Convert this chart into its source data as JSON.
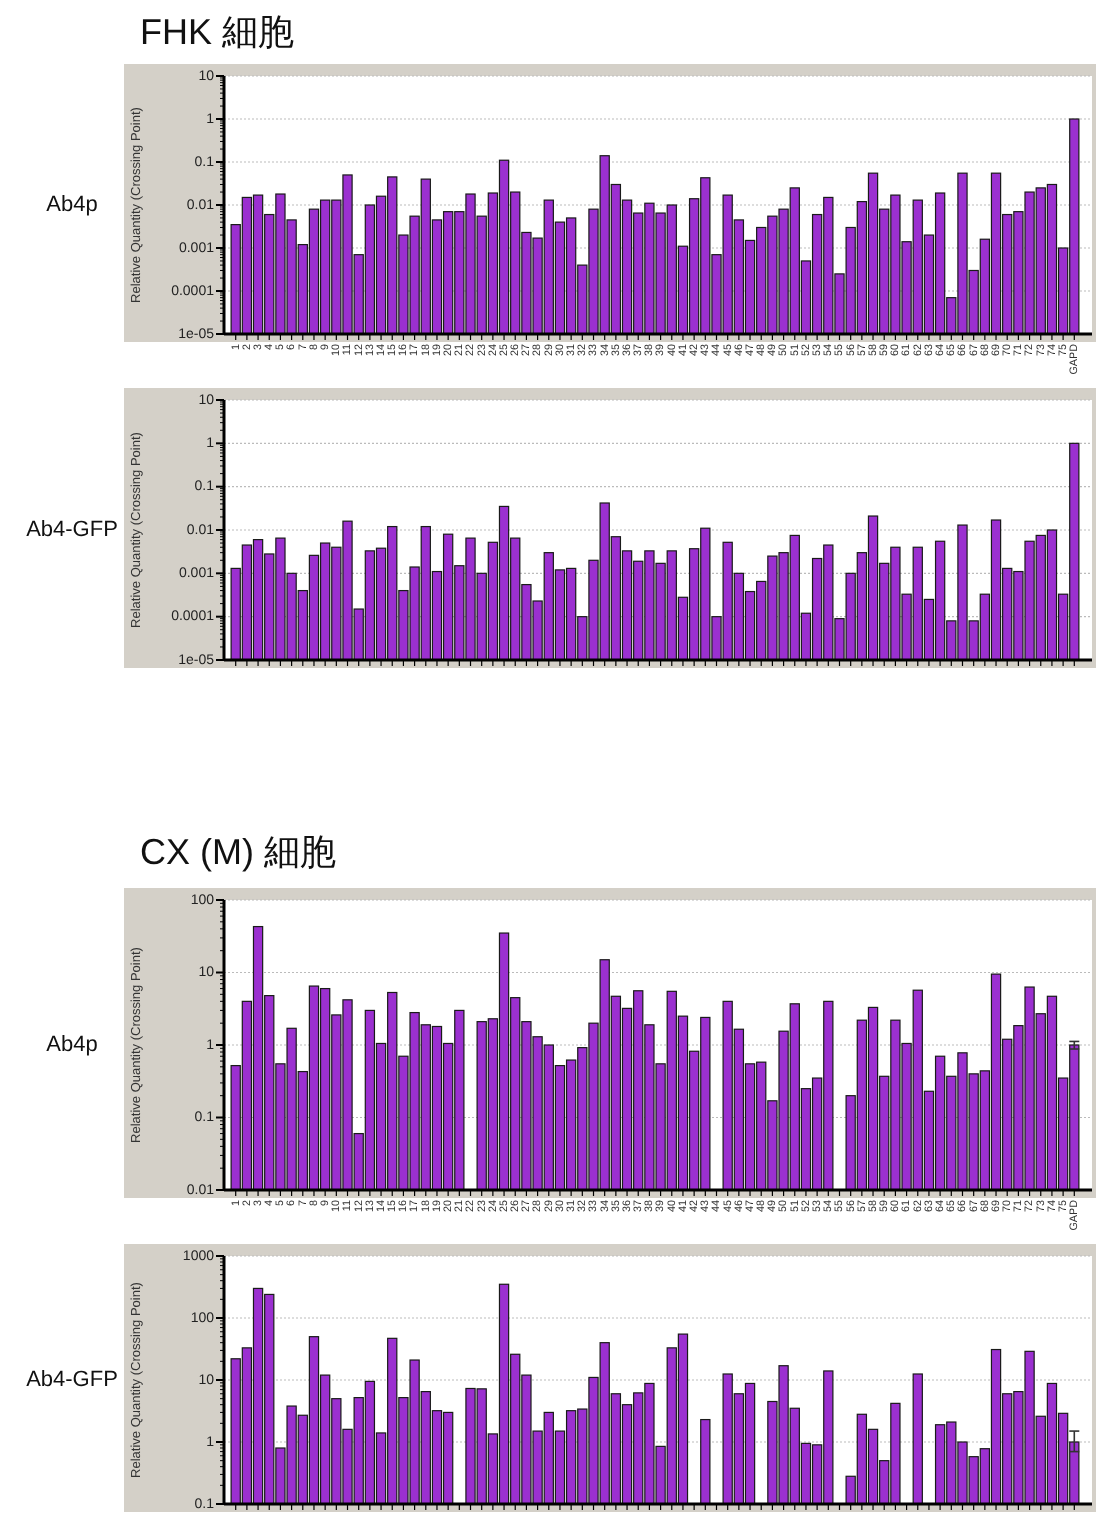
{
  "chart_data": [
    {
      "type": "bar",
      "title": "FHK 細胞",
      "subtitle": "Ab4p",
      "ylabel": "Relative Quantity (Crossing Point)",
      "log": true,
      "grid": "y",
      "color": "#9b30d0",
      "categories": [
        "1",
        "2",
        "3",
        "4",
        "5",
        "6",
        "7",
        "8",
        "9",
        "10",
        "11",
        "12",
        "13",
        "14",
        "15",
        "16",
        "17",
        "18",
        "19",
        "20",
        "21",
        "22",
        "23",
        "24",
        "25",
        "26",
        "27",
        "28",
        "29",
        "30",
        "31",
        "32",
        "33",
        "34",
        "35",
        "36",
        "37",
        "38",
        "39",
        "40",
        "41",
        "42",
        "43",
        "44",
        "45",
        "46",
        "47",
        "48",
        "49",
        "50",
        "51",
        "52",
        "53",
        "54",
        "55",
        "56",
        "57",
        "58",
        "59",
        "60",
        "61",
        "62",
        "63",
        "64",
        "65",
        "66",
        "67",
        "68",
        "69",
        "70",
        "71",
        "72",
        "73",
        "74",
        "75",
        "GAPD"
      ],
      "values": [
        0.0035,
        0.015,
        0.017,
        0.006,
        0.018,
        0.0045,
        0.0012,
        0.008,
        0.013,
        0.013,
        0.05,
        0.0007,
        0.01,
        0.016,
        0.045,
        0.002,
        0.0055,
        0.04,
        0.0045,
        0.007,
        0.007,
        0.018,
        0.0055,
        0.019,
        0.11,
        0.02,
        0.0023,
        0.0017,
        0.013,
        0.004,
        0.005,
        0.0004,
        0.008,
        0.14,
        0.03,
        0.013,
        0.0065,
        0.011,
        0.0065,
        0.01,
        0.0011,
        0.014,
        0.043,
        0.0007,
        0.017,
        0.0045,
        0.0015,
        0.003,
        0.0055,
        0.008,
        0.025,
        0.0005,
        0.006,
        0.015,
        0.00025,
        0.003,
        0.012,
        0.055,
        0.008,
        0.017,
        0.0014,
        0.013,
        0.002,
        0.019,
        7e-05,
        0.055,
        0.0003,
        0.0016,
        0.055,
        0.006,
        0.007,
        0.02,
        0.025,
        0.03,
        0.001,
        1
      ],
      "ylim": [
        1e-05,
        10
      ],
      "yticks": [
        {
          "value": 1e-05,
          "label": "1e-05"
        },
        0.0001,
        0.001,
        0.01,
        0.1,
        1,
        10
      ]
    },
    {
      "type": "bar",
      "subtitle": "Ab4-GFP",
      "ylabel": "Relative Quantity (Crossing Point)",
      "log": true,
      "grid": "y",
      "color": "#9b30d0",
      "categories": [
        null,
        null,
        null,
        null,
        null,
        null,
        null,
        null,
        null,
        null,
        null,
        null,
        null,
        null,
        null,
        null,
        null,
        null,
        null,
        null,
        null,
        null,
        null,
        null,
        null,
        null,
        null,
        null,
        null,
        null,
        null,
        null,
        null,
        null,
        null,
        null,
        null,
        null,
        null,
        null,
        null,
        null,
        null,
        null,
        null,
        null,
        null,
        null,
        null,
        null,
        null,
        null,
        null,
        null,
        null,
        null,
        null,
        null,
        null,
        null,
        null,
        null,
        null,
        null,
        null,
        null,
        null,
        null,
        null,
        null,
        null,
        null,
        null,
        null,
        null,
        null
      ],
      "values": [
        0.0013,
        0.0045,
        0.006,
        0.0028,
        0.0065,
        0.001,
        0.0004,
        0.0026,
        0.005,
        0.004,
        0.016,
        0.00015,
        0.0033,
        0.0038,
        0.012,
        0.0004,
        0.0014,
        0.012,
        0.0011,
        0.008,
        0.0015,
        0.0065,
        0.001,
        0.0052,
        0.035,
        0.0065,
        0.00055,
        0.00023,
        0.003,
        0.0012,
        0.0013,
        0.0001,
        0.002,
        0.042,
        0.007,
        0.0033,
        0.0019,
        0.0033,
        0.0017,
        0.0033,
        0.00028,
        0.0037,
        0.011,
        0.0001,
        0.0052,
        0.001,
        0.00038,
        0.00065,
        0.0025,
        0.003,
        0.0075,
        0.00012,
        0.0022,
        0.0045,
        9e-05,
        0.001,
        0.003,
        0.021,
        0.0017,
        0.004,
        0.00033,
        0.004,
        0.00025,
        0.0055,
        8e-05,
        0.013,
        8e-05,
        0.00033,
        0.017,
        0.0013,
        0.0011,
        0.0055,
        0.0075,
        0.01,
        0.00033,
        1
      ],
      "ylim": [
        1e-05,
        10
      ],
      "yticks": [
        {
          "value": 1e-05,
          "label": "1e-05"
        },
        0.0001,
        0.001,
        0.01,
        0.1,
        1,
        10
      ]
    },
    {
      "type": "bar",
      "title": "CX (M) 細胞",
      "subtitle": "Ab4p",
      "ylabel": "Relative Quantity (Crossing Point)",
      "log": true,
      "grid": "y",
      "color": "#9b30d0",
      "categories": [
        "1",
        "2",
        "3",
        "4",
        "5",
        "6",
        "7",
        "8",
        "9",
        "10",
        "11",
        "12",
        "13",
        "14",
        "15",
        "16",
        "17",
        "18",
        "19",
        "20",
        "21",
        "22",
        "23",
        "24",
        "25",
        "26",
        "27",
        "28",
        "29",
        "30",
        "31",
        "32",
        "33",
        "34",
        "35",
        "36",
        "37",
        "38",
        "39",
        "40",
        "41",
        "42",
        "43",
        "44",
        "45",
        "46",
        "47",
        "48",
        "49",
        "50",
        "51",
        "52",
        "53",
        "54",
        "55",
        "56",
        "57",
        "58",
        "59",
        "60",
        "61",
        "62",
        "63",
        "64",
        "65",
        "66",
        "67",
        "68",
        "69",
        "70",
        "71",
        "72",
        "73",
        "74",
        "75",
        "GAPD"
      ],
      "values": [
        0.52,
        4,
        43,
        4.8,
        0.55,
        1.7,
        0.43,
        6.5,
        6,
        2.6,
        4.2,
        0.06,
        3,
        1.05,
        5.3,
        0.7,
        2.8,
        1.9,
        1.8,
        1.05,
        3,
        null,
        2.1,
        2.3,
        35,
        4.5,
        2.1,
        1.3,
        1,
        0.52,
        0.62,
        0.92,
        2,
        15,
        4.7,
        3.2,
        5.6,
        1.9,
        0.55,
        5.5,
        2.5,
        0.82,
        2.4,
        null,
        4,
        1.65,
        0.55,
        0.58,
        0.17,
        1.55,
        3.7,
        0.25,
        0.35,
        4,
        null,
        0.2,
        2.2,
        3.3,
        0.37,
        2.2,
        1.05,
        5.7,
        0.23,
        0.7,
        0.37,
        0.78,
        0.4,
        0.44,
        9.5,
        1.2,
        1.85,
        6.3,
        2.7,
        4.7,
        0.35,
        1
      ],
      "errors": [
        null,
        null,
        null,
        null,
        null,
        null,
        null,
        null,
        null,
        null,
        null,
        null,
        null,
        null,
        null,
        null,
        null,
        null,
        null,
        null,
        null,
        null,
        null,
        null,
        null,
        null,
        null,
        null,
        null,
        null,
        null,
        null,
        null,
        null,
        null,
        null,
        null,
        null,
        null,
        null,
        null,
        null,
        null,
        null,
        null,
        null,
        null,
        null,
        null,
        null,
        null,
        null,
        null,
        null,
        null,
        null,
        null,
        null,
        null,
        null,
        null,
        null,
        null,
        null,
        null,
        null,
        null,
        null,
        null,
        null,
        null,
        null,
        null,
        null,
        null,
        [
          0.88,
          1.12
        ]
      ],
      "ylim": [
        0.01,
        100
      ],
      "yticks": [
        0.01,
        0.1,
        1,
        10,
        100
      ]
    },
    {
      "type": "bar",
      "subtitle": "Ab4-GFP",
      "ylabel": "Relative Quantity (Crossing Point)",
      "log": true,
      "grid": "y",
      "color": "#9b30d0",
      "categories": [
        null,
        null,
        null,
        null,
        null,
        null,
        null,
        null,
        null,
        null,
        null,
        null,
        null,
        null,
        null,
        null,
        null,
        null,
        null,
        null,
        null,
        null,
        null,
        null,
        null,
        null,
        null,
        null,
        null,
        null,
        null,
        null,
        null,
        null,
        null,
        null,
        null,
        null,
        null,
        null,
        null,
        null,
        null,
        null,
        null,
        null,
        null,
        null,
        null,
        null,
        null,
        null,
        null,
        null,
        null,
        null,
        null,
        null,
        null,
        null,
        null,
        null,
        null,
        null,
        null,
        null,
        null,
        null,
        null,
        null,
        null,
        null,
        null,
        null,
        null,
        null
      ],
      "values": [
        22,
        33,
        300,
        240,
        0.8,
        3.8,
        2.7,
        50,
        12,
        5,
        1.6,
        5.2,
        9.5,
        1.4,
        47,
        5.2,
        21,
        6.5,
        3.2,
        3,
        null,
        7.3,
        7.2,
        1.35,
        350,
        26,
        12,
        1.5,
        3,
        1.5,
        3.2,
        3.4,
        11,
        40,
        6,
        4,
        6.2,
        8.8,
        0.85,
        33,
        55,
        null,
        2.3,
        null,
        12.5,
        6,
        8.8,
        null,
        4.5,
        17,
        3.5,
        0.95,
        0.9,
        14,
        null,
        0.28,
        2.8,
        1.6,
        0.5,
        4.2,
        null,
        12.5,
        null,
        1.9,
        2.1,
        1,
        0.58,
        0.78,
        31,
        6,
        6.5,
        29,
        2.6,
        8.8,
        2.9,
        1
      ],
      "errors": [
        null,
        null,
        null,
        null,
        null,
        null,
        null,
        null,
        null,
        null,
        null,
        null,
        null,
        null,
        null,
        null,
        null,
        null,
        null,
        null,
        null,
        null,
        null,
        null,
        null,
        null,
        null,
        null,
        null,
        null,
        null,
        null,
        null,
        null,
        null,
        null,
        null,
        null,
        null,
        null,
        null,
        null,
        null,
        null,
        null,
        null,
        null,
        null,
        null,
        null,
        null,
        null,
        null,
        null,
        null,
        null,
        null,
        null,
        null,
        null,
        null,
        null,
        null,
        null,
        null,
        null,
        null,
        null,
        null,
        null,
        null,
        null,
        null,
        null,
        null,
        [
          0.7,
          1.5
        ]
      ],
      "ylim": [
        0.1,
        1000
      ],
      "yticks": [
        0.1,
        1,
        10,
        100,
        1000
      ]
    }
  ]
}
